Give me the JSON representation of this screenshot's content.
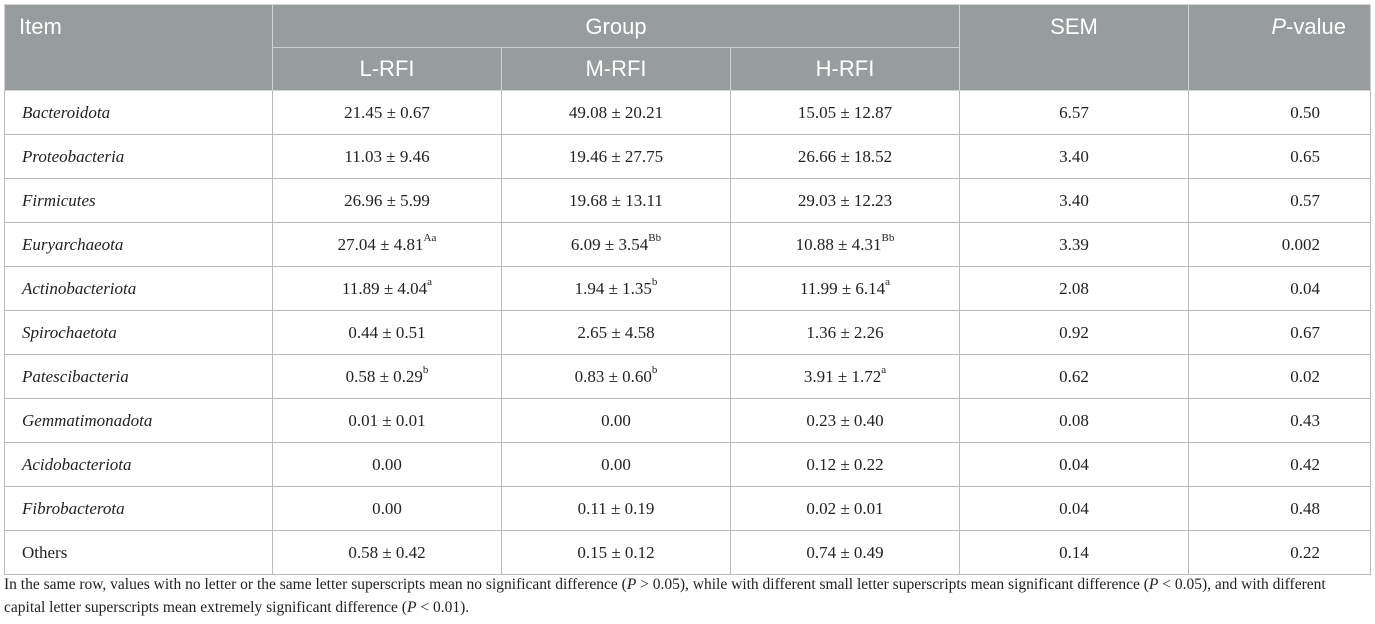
{
  "header": {
    "item": "Item",
    "group": "Group",
    "sem": "SEM",
    "pvalue_italic": "P",
    "pvalue_rest": "-value",
    "groups": [
      "L-RFI",
      "M-RFI",
      "H-RFI"
    ]
  },
  "rows": [
    {
      "item": "Bacteroidota",
      "italic": true,
      "l": "21.45 ± 0.67",
      "l_sup": "",
      "m": "49.08 ± 20.21",
      "m_sup": "",
      "h": "15.05 ± 12.87",
      "h_sup": "",
      "sem": "6.57",
      "p": "0.50"
    },
    {
      "item": "Proteobacteria",
      "italic": true,
      "l": "11.03 ± 9.46",
      "l_sup": "",
      "m": "19.46 ± 27.75",
      "m_sup": "",
      "h": "26.66 ± 18.52",
      "h_sup": "",
      "sem": "3.40",
      "p": "0.65"
    },
    {
      "item": "Firmicutes",
      "italic": true,
      "l": "26.96 ± 5.99",
      "l_sup": "",
      "m": "19.68 ± 13.11",
      "m_sup": "",
      "h": "29.03 ± 12.23",
      "h_sup": "",
      "sem": "3.40",
      "p": "0.57"
    },
    {
      "item": "Euryarchaeota",
      "italic": true,
      "l": "27.04 ± 4.81",
      "l_sup": "Aa",
      "m": "6.09 ± 3.54",
      "m_sup": "Bb",
      "h": "10.88 ± 4.31",
      "h_sup": "Bb",
      "sem": "3.39",
      "p": "0.002"
    },
    {
      "item": "Actinobacteriota",
      "italic": true,
      "l": "11.89 ± 4.04",
      "l_sup": "a",
      "m": "1.94 ± 1.35",
      "m_sup": "b",
      "h": "11.99 ± 6.14",
      "h_sup": "a",
      "sem": "2.08",
      "p": "0.04"
    },
    {
      "item": "Spirochaetota",
      "italic": true,
      "l": "0.44 ± 0.51",
      "l_sup": "",
      "m": "2.65 ± 4.58",
      "m_sup": "",
      "h": "1.36 ± 2.26",
      "h_sup": "",
      "sem": "0.92",
      "p": "0.67"
    },
    {
      "item": "Patescibacteria",
      "italic": true,
      "l": "0.58 ± 0.29",
      "l_sup": "b",
      "m": "0.83 ± 0.60",
      "m_sup": "b",
      "h": "3.91 ± 1.72",
      "h_sup": "a",
      "sem": "0.62",
      "p": "0.02"
    },
    {
      "item": "Gemmatimonadota",
      "italic": true,
      "l": "0.01 ± 0.01",
      "l_sup": "",
      "m": "0.00",
      "m_sup": "",
      "h": "0.23 ± 0.40",
      "h_sup": "",
      "sem": "0.08",
      "p": "0.43"
    },
    {
      "item": "Acidobacteriota",
      "italic": true,
      "l": "0.00",
      "l_sup": "",
      "m": "0.00",
      "m_sup": "",
      "h": "0.12 ± 0.22",
      "h_sup": "",
      "sem": "0.04",
      "p": "0.42"
    },
    {
      "item": "Fibrobacterota",
      "italic": true,
      "l": "0.00",
      "l_sup": "",
      "m": "0.11 ± 0.19",
      "m_sup": "",
      "h": "0.02 ± 0.01",
      "h_sup": "",
      "sem": "0.04",
      "p": "0.48"
    },
    {
      "item": "Others",
      "italic": false,
      "l": "0.58 ± 0.42",
      "l_sup": "",
      "m": "0.15 ± 0.12",
      "m_sup": "",
      "h": "0.74 ± 0.49",
      "h_sup": "",
      "sem": "0.14",
      "p": "0.22"
    }
  ],
  "footnote": {
    "t1": "In the same row, values with no letter or the same letter superscripts mean no significant difference (",
    "p1": "P",
    "t2": " > 0.05), while with different small letter superscripts mean significant difference (",
    "p2": "P",
    "t3": " < 0.05), and with different capital letter superscripts mean extremely significant difference (",
    "p3": "P",
    "t4": " < 0.01)."
  },
  "colors": {
    "header_bg": "#979c9d",
    "header_text": "#ffffff",
    "border": "#b7bbbc"
  }
}
